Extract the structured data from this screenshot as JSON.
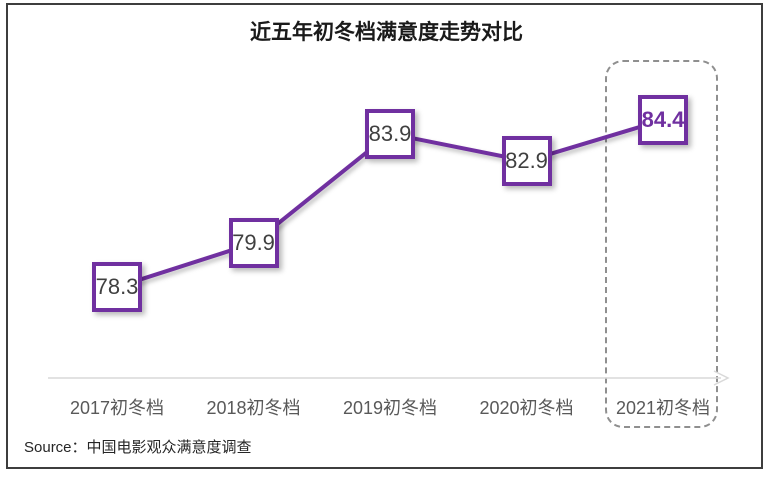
{
  "title": "近五年初冬档满意度走势对比",
  "source": {
    "prefix": "Source：",
    "text": "中国电影观众满意度调查"
  },
  "chart_data": {
    "type": "line",
    "title": "近五年初冬档满意度走势对比",
    "categories": [
      "2017初冬档",
      "2018初冬档",
      "2019初冬档",
      "2020初冬档",
      "2021初冬档"
    ],
    "values": [
      78.3,
      79.9,
      83.9,
      82.9,
      84.4
    ],
    "series_name": "初冬档满意度",
    "xlabel": "",
    "ylabel": "",
    "ylim": [
      76,
      86
    ],
    "y_axis_visible": false,
    "grid": false,
    "legend_position": "none",
    "highlight_index": 4,
    "highlight_style": "dashed-box",
    "marker_shape": "square",
    "colors": {
      "line": "#7030A0",
      "marker_border": "#7030A0",
      "marker_fill": "#ffffff",
      "value_text": "#404040",
      "highlight_value_text": "#7030A0",
      "axis_line": "#d9d9d9",
      "category_label": "#595959",
      "highlight_box_border": "#8f8f8f",
      "title_text": "#1a1a1a"
    }
  }
}
